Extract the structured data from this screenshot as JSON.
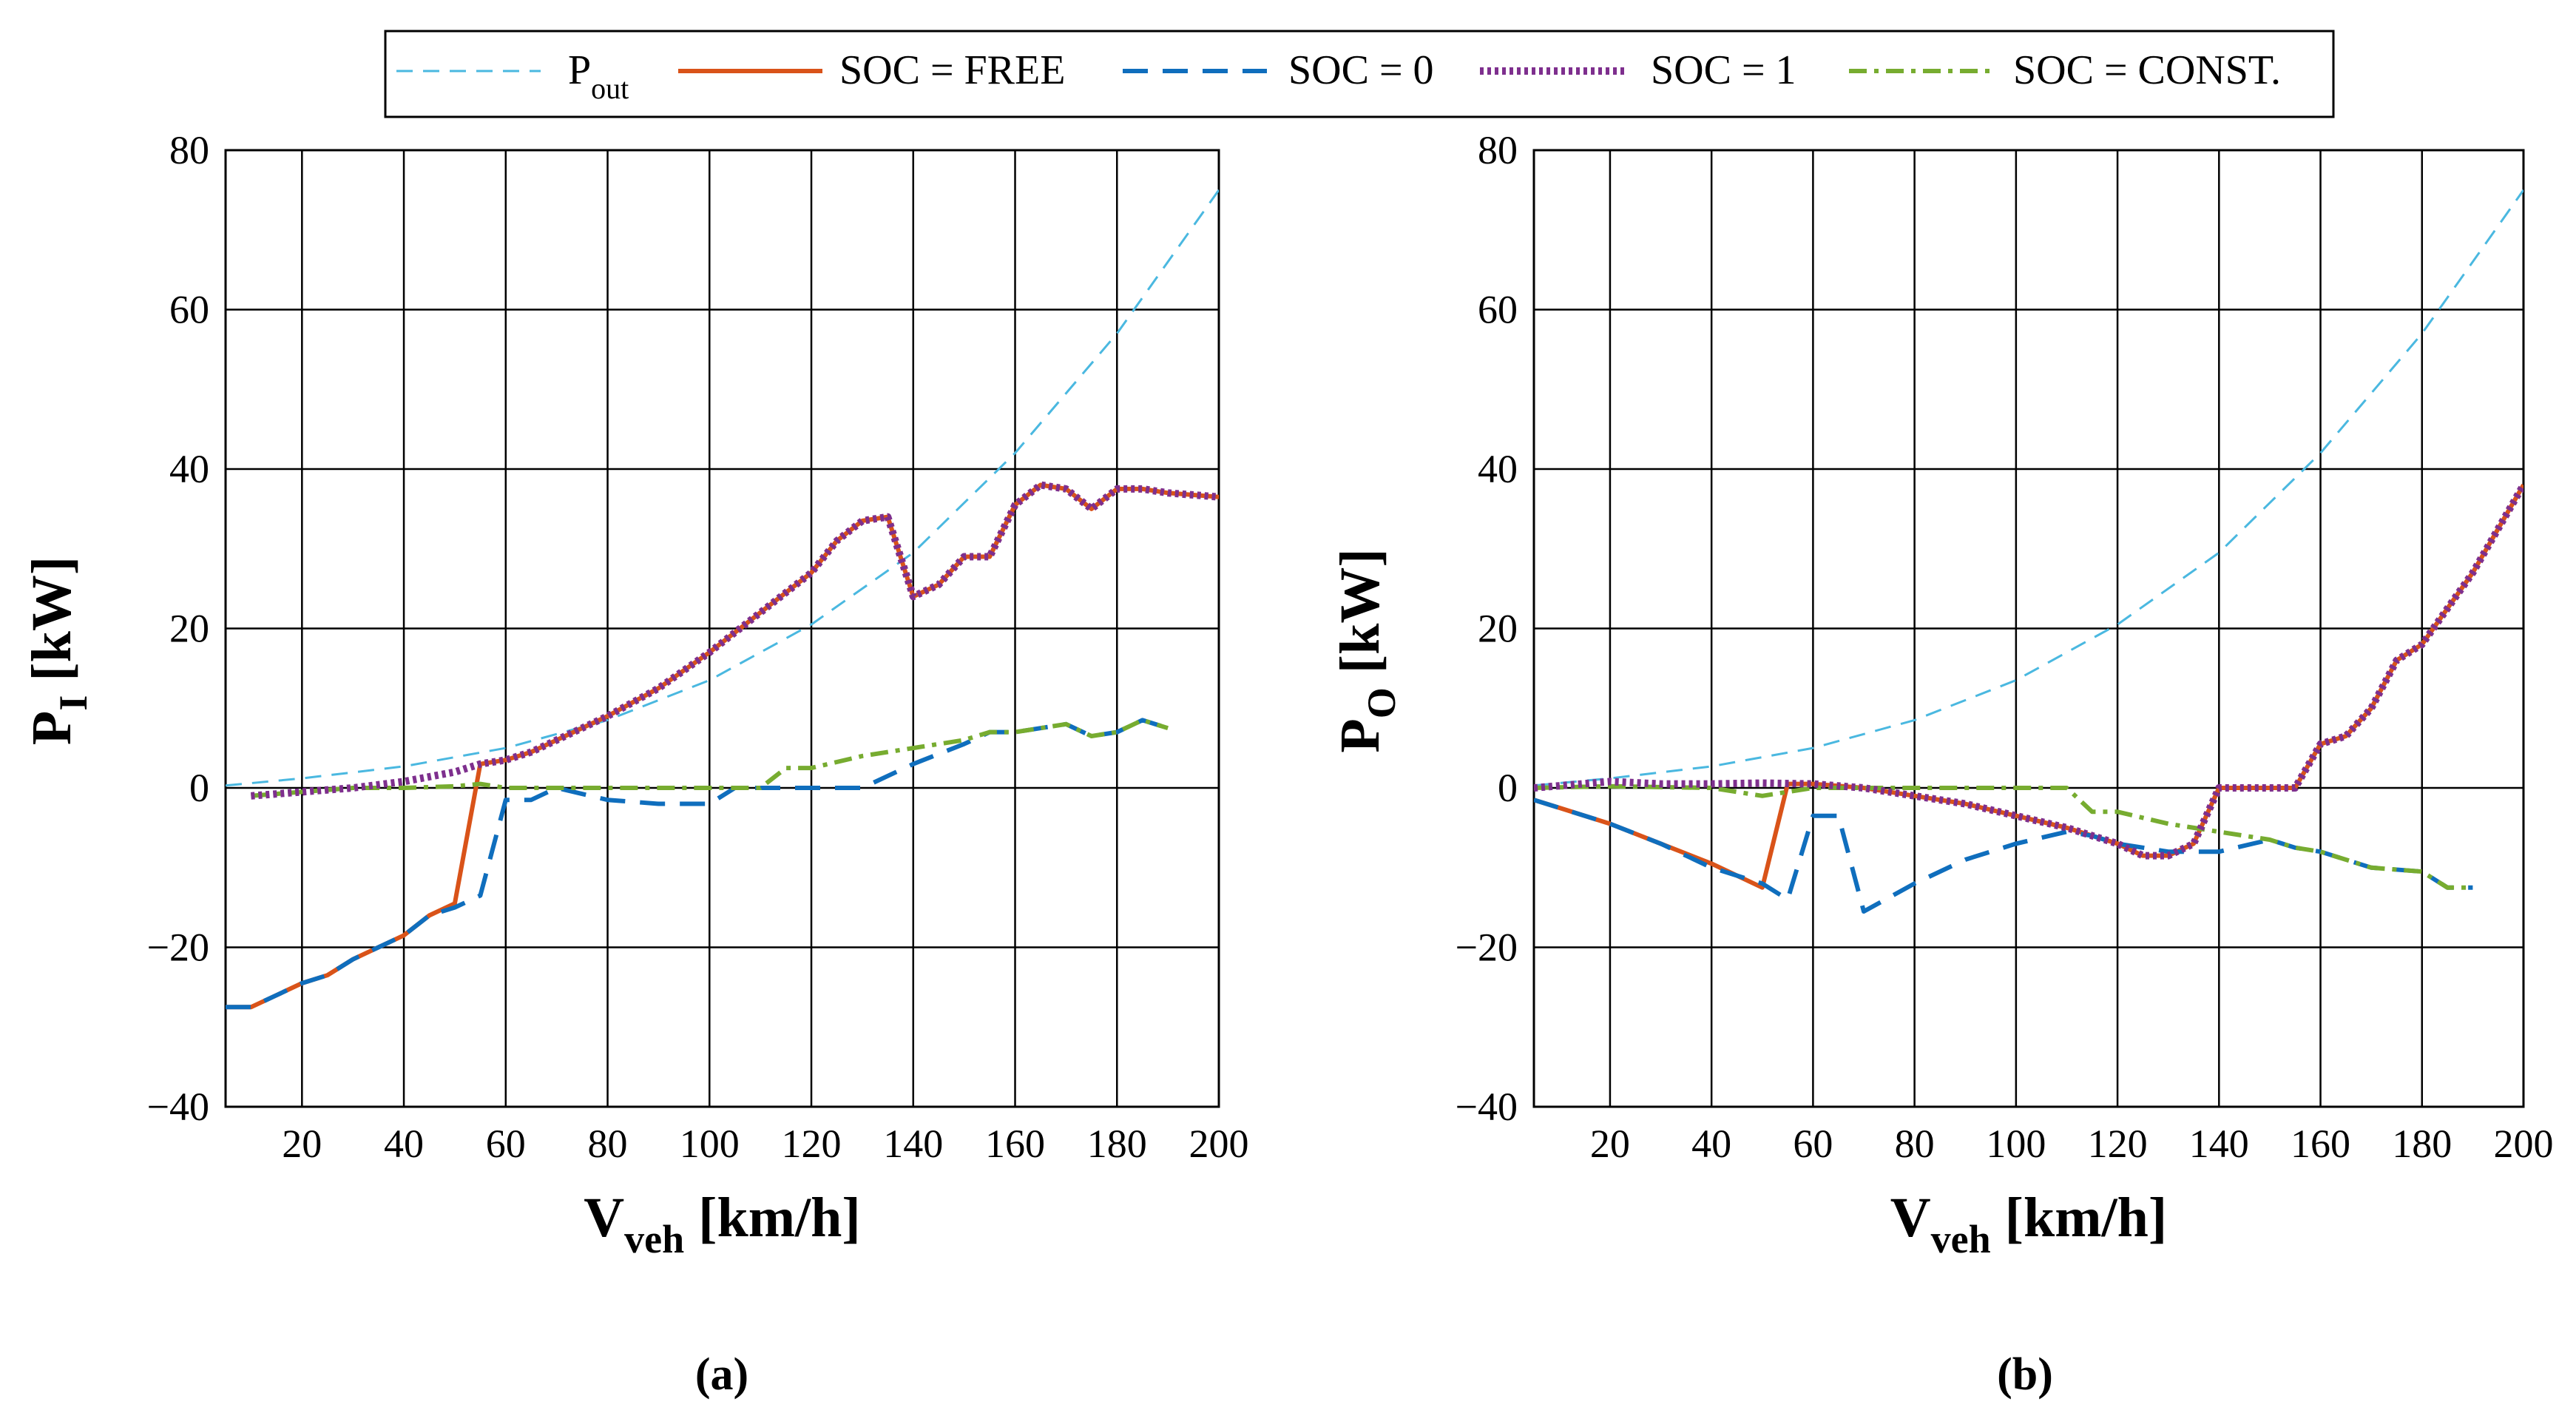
{
  "legend": {
    "entries": [
      {
        "label": "P",
        "sub": "out"
      },
      {
        "label": "SOC = FREE",
        "sub": ""
      },
      {
        "label": "SOC = 0",
        "sub": ""
      },
      {
        "label": "SOC = 1",
        "sub": ""
      },
      {
        "label": "SOC = CONST.",
        "sub": ""
      }
    ]
  },
  "colors": {
    "pout": "#4ab8e0",
    "free": "#d95319",
    "soc0": "#0f6ebd",
    "soc1": "#7e2f8e",
    "const": "#77ac30",
    "grid": "#000000"
  },
  "chart_data": [
    {
      "type": "line",
      "panel_label": "(a)",
      "xlabel": "V",
      "xlabel_sub": "veh",
      "xlabel_unit": "[km/h]",
      "ylabel": "P",
      "ylabel_sub": "I",
      "ylabel_unit": "[kW]",
      "xlim": [
        5,
        200
      ],
      "ylim": [
        -40,
        80
      ],
      "xticks": [
        20,
        40,
        60,
        80,
        100,
        120,
        140,
        160,
        180,
        200
      ],
      "yticks": [
        -40,
        -20,
        0,
        20,
        40,
        60,
        80
      ],
      "xtick_labels": [
        "20",
        "40",
        "60",
        "80",
        "100",
        "120",
        "140",
        "160",
        "180",
        "200"
      ],
      "ytick_labels": [
        "−40",
        "−20",
        "0",
        "20",
        "40",
        "60",
        "80"
      ],
      "grid": true,
      "series": [
        {
          "key": "pout",
          "name": "P_out",
          "points": [
            [
              5,
              0.3
            ],
            [
              20,
              1.2
            ],
            [
              40,
              2.7
            ],
            [
              60,
              5
            ],
            [
              80,
              8.5
            ],
            [
              100,
              13.5
            ],
            [
              120,
              20.5
            ],
            [
              140,
              29.5
            ],
            [
              160,
              42
            ],
            [
              180,
              57
            ],
            [
              200,
              75
            ]
          ]
        },
        {
          "key": "free",
          "name": "SOC = FREE",
          "points": [
            [
              5,
              -27.5
            ],
            [
              10,
              -27.5
            ],
            [
              15,
              -26
            ],
            [
              20,
              -24.5
            ],
            [
              25,
              -23.5
            ],
            [
              30,
              -21.5
            ],
            [
              35,
              -20
            ],
            [
              40,
              -18.5
            ],
            [
              45,
              -16
            ],
            [
              50,
              -14.5
            ],
            [
              55,
              3
            ],
            [
              60,
              3.5
            ],
            [
              65,
              4.5
            ],
            [
              70,
              6
            ],
            [
              80,
              9
            ],
            [
              90,
              12.5
            ],
            [
              100,
              17
            ],
            [
              110,
              22
            ],
            [
              120,
              27
            ],
            [
              125,
              31
            ],
            [
              130,
              33.5
            ],
            [
              135,
              34
            ],
            [
              140,
              24
            ],
            [
              145,
              25.5
            ],
            [
              150,
              29
            ],
            [
              155,
              29
            ],
            [
              160,
              35.5
            ],
            [
              165,
              38
            ],
            [
              170,
              37.5
            ],
            [
              175,
              35
            ],
            [
              180,
              37.5
            ],
            [
              185,
              37.5
            ],
            [
              190,
              37
            ],
            [
              200,
              36.5
            ]
          ]
        },
        {
          "key": "soc0",
          "name": "SOC = 0",
          "points": [
            [
              5,
              -27.5
            ],
            [
              10,
              -27.5
            ],
            [
              15,
              -26
            ],
            [
              20,
              -24.5
            ],
            [
              25,
              -23.5
            ],
            [
              30,
              -21.5
            ],
            [
              35,
              -20
            ],
            [
              40,
              -18.5
            ],
            [
              45,
              -16
            ],
            [
              50,
              -15
            ],
            [
              55,
              -13.5
            ],
            [
              60,
              -1.5
            ],
            [
              65,
              -1.5
            ],
            [
              70,
              0
            ],
            [
              80,
              -1.5
            ],
            [
              90,
              -2
            ],
            [
              100,
              -2
            ],
            [
              105,
              0
            ],
            [
              110,
              0
            ],
            [
              130,
              0
            ],
            [
              140,
              3
            ],
            [
              150,
              5.5
            ],
            [
              155,
              7
            ],
            [
              160,
              7
            ],
            [
              170,
              8
            ],
            [
              175,
              6.5
            ],
            [
              180,
              7
            ],
            [
              185,
              8.5
            ],
            [
              190,
              7.5
            ]
          ]
        },
        {
          "key": "soc1",
          "name": "SOC = 1",
          "points": [
            [
              10,
              -1
            ],
            [
              20,
              -0.5
            ],
            [
              30,
              0
            ],
            [
              40,
              0.8
            ],
            [
              50,
              2
            ],
            [
              55,
              3
            ],
            [
              60,
              3.5
            ],
            [
              65,
              4.5
            ],
            [
              70,
              6
            ],
            [
              80,
              9
            ],
            [
              90,
              12.5
            ],
            [
              100,
              17
            ],
            [
              110,
              22
            ],
            [
              120,
              27
            ],
            [
              125,
              31
            ],
            [
              130,
              33.5
            ],
            [
              135,
              34
            ],
            [
              140,
              24
            ],
            [
              145,
              25.5
            ],
            [
              150,
              29
            ],
            [
              155,
              29
            ],
            [
              160,
              35.5
            ],
            [
              165,
              38
            ],
            [
              170,
              37.5
            ],
            [
              175,
              35
            ],
            [
              180,
              37.5
            ],
            [
              185,
              37.5
            ],
            [
              190,
              37
            ],
            [
              200,
              36.5
            ]
          ]
        },
        {
          "key": "const",
          "name": "SOC = CONST.",
          "points": [
            [
              10,
              -1
            ],
            [
              20,
              -0.5
            ],
            [
              30,
              0
            ],
            [
              40,
              0
            ],
            [
              50,
              0.2
            ],
            [
              55,
              0.5
            ],
            [
              60,
              0
            ],
            [
              100,
              0
            ],
            [
              110,
              0
            ],
            [
              115,
              2.5
            ],
            [
              120,
              2.5
            ],
            [
              130,
              4
            ],
            [
              140,
              5
            ],
            [
              150,
              6
            ],
            [
              155,
              7
            ],
            [
              160,
              7
            ],
            [
              170,
              8
            ],
            [
              175,
              6.5
            ],
            [
              180,
              7
            ],
            [
              185,
              8.5
            ],
            [
              190,
              7.5
            ]
          ]
        }
      ]
    },
    {
      "type": "line",
      "panel_label": "(b)",
      "xlabel": "V",
      "xlabel_sub": "veh",
      "xlabel_unit": "[km/h]",
      "ylabel": "P",
      "ylabel_sub": "O",
      "ylabel_unit": "[kW]",
      "xlim": [
        5,
        200
      ],
      "ylim": [
        -40,
        80
      ],
      "xticks": [
        20,
        40,
        60,
        80,
        100,
        120,
        140,
        160,
        180,
        200
      ],
      "yticks": [
        -40,
        -20,
        0,
        20,
        40,
        60,
        80
      ],
      "xtick_labels": [
        "20",
        "40",
        "60",
        "80",
        "100",
        "120",
        "140",
        "160",
        "180",
        "200"
      ],
      "ytick_labels": [
        "−40",
        "−20",
        "0",
        "20",
        "40",
        "60",
        "80"
      ],
      "grid": true,
      "series": [
        {
          "key": "pout",
          "name": "P_out",
          "points": [
            [
              5,
              0.3
            ],
            [
              20,
              1.2
            ],
            [
              40,
              2.7
            ],
            [
              60,
              5
            ],
            [
              80,
              8.5
            ],
            [
              100,
              13.5
            ],
            [
              120,
              20.5
            ],
            [
              140,
              29.5
            ],
            [
              160,
              42
            ],
            [
              180,
              57
            ],
            [
              200,
              75
            ]
          ]
        },
        {
          "key": "free",
          "name": "SOC = FREE",
          "points": [
            [
              5,
              -1.5
            ],
            [
              10,
              -2.5
            ],
            [
              20,
              -4.5
            ],
            [
              30,
              -7
            ],
            [
              40,
              -9.5
            ],
            [
              50,
              -12.5
            ],
            [
              55,
              0.5
            ],
            [
              60,
              0.5
            ],
            [
              70,
              0
            ],
            [
              80,
              -1
            ],
            [
              90,
              -2
            ],
            [
              100,
              -3.5
            ],
            [
              110,
              -5
            ],
            [
              120,
              -7
            ],
            [
              125,
              -8.5
            ],
            [
              130,
              -8.5
            ],
            [
              135,
              -7
            ],
            [
              140,
              0
            ],
            [
              145,
              0
            ],
            [
              155,
              0
            ],
            [
              160,
              5.5
            ],
            [
              165,
              6.5
            ],
            [
              170,
              10
            ],
            [
              175,
              16
            ],
            [
              180,
              18
            ],
            [
              190,
              27
            ],
            [
              200,
              38
            ]
          ]
        },
        {
          "key": "soc0",
          "name": "SOC = 0",
          "points": [
            [
              5,
              -1.5
            ],
            [
              10,
              -2.5
            ],
            [
              20,
              -4.5
            ],
            [
              30,
              -7
            ],
            [
              40,
              -10
            ],
            [
              50,
              -12
            ],
            [
              55,
              -14
            ],
            [
              60,
              -3.5
            ],
            [
              65,
              -3.5
            ],
            [
              70,
              -15.5
            ],
            [
              80,
              -12
            ],
            [
              90,
              -9
            ],
            [
              100,
              -7
            ],
            [
              110,
              -5.5
            ],
            [
              115,
              -6
            ],
            [
              120,
              -7
            ],
            [
              130,
              -8
            ],
            [
              140,
              -8
            ],
            [
              150,
              -6.5
            ],
            [
              155,
              -7.5
            ],
            [
              160,
              -8
            ],
            [
              170,
              -10
            ],
            [
              180,
              -10.5
            ],
            [
              185,
              -12.5
            ],
            [
              190,
              -12.5
            ]
          ]
        },
        {
          "key": "soc1",
          "name": "SOC = 1",
          "points": [
            [
              5,
              0
            ],
            [
              20,
              0.8
            ],
            [
              30,
              0.5
            ],
            [
              40,
              0.5
            ],
            [
              50,
              0.6
            ],
            [
              60,
              0.5
            ],
            [
              70,
              0
            ],
            [
              80,
              -1
            ],
            [
              90,
              -2
            ],
            [
              100,
              -3.5
            ],
            [
              110,
              -5
            ],
            [
              120,
              -7
            ],
            [
              125,
              -8.5
            ],
            [
              130,
              -8.5
            ],
            [
              135,
              -7
            ],
            [
              140,
              0
            ],
            [
              145,
              0
            ],
            [
              155,
              0
            ],
            [
              160,
              5.5
            ],
            [
              165,
              6.5
            ],
            [
              170,
              10
            ],
            [
              175,
              16
            ],
            [
              180,
              18
            ],
            [
              190,
              27
            ],
            [
              200,
              38
            ]
          ]
        },
        {
          "key": "const",
          "name": "SOC = CONST.",
          "points": [
            [
              5,
              0
            ],
            [
              20,
              0.2
            ],
            [
              40,
              0
            ],
            [
              45,
              -0.5
            ],
            [
              50,
              -1
            ],
            [
              55,
              -0.5
            ],
            [
              60,
              0
            ],
            [
              110,
              0
            ],
            [
              115,
              -3
            ],
            [
              120,
              -3
            ],
            [
              130,
              -4.5
            ],
            [
              140,
              -5.5
            ],
            [
              150,
              -6.5
            ],
            [
              155,
              -7.5
            ],
            [
              160,
              -8
            ],
            [
              170,
              -10
            ],
            [
              180,
              -10.5
            ],
            [
              185,
              -12.5
            ],
            [
              190,
              -12.5
            ]
          ]
        }
      ]
    }
  ]
}
